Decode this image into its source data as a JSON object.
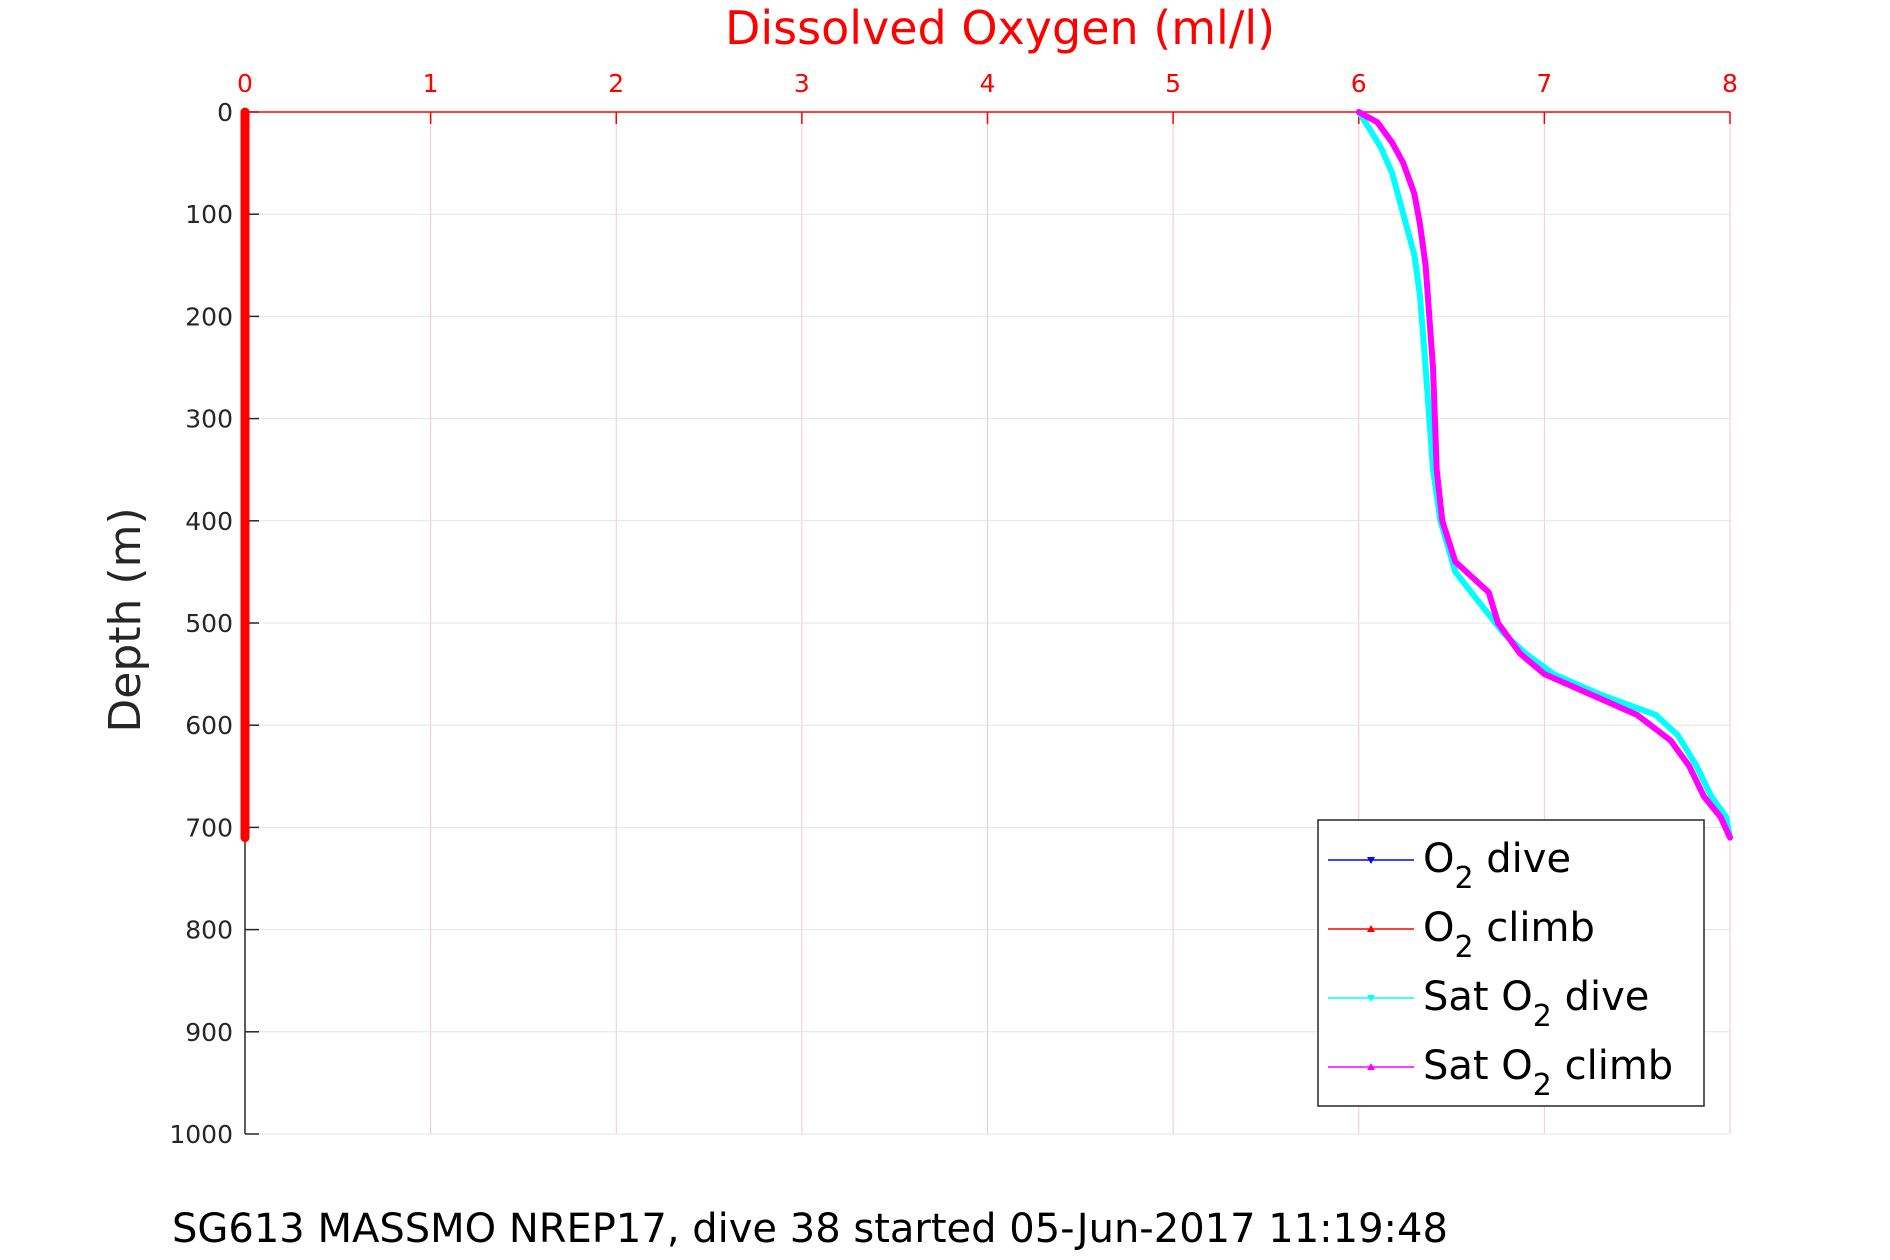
{
  "chart_data": {
    "type": "line",
    "title": "Dissolved Oxygen (ml/l)",
    "ylabel": "Depth (m)",
    "caption": "SG613 MASSMO NREP17, dive 38 started 05-Jun-2017 11:19:48",
    "xlim": [
      0,
      8
    ],
    "ylim": [
      0,
      1000
    ],
    "y_reversed": true,
    "x_axis_position": "top",
    "x_ticks": [
      0,
      1,
      2,
      3,
      4,
      5,
      6,
      7,
      8
    ],
    "y_ticks": [
      0,
      100,
      200,
      300,
      400,
      500,
      600,
      700,
      800,
      900,
      1000
    ],
    "grid": true,
    "legend_position": "bottom-right",
    "legend": [
      {
        "label_main": "O",
        "label_sub": "2",
        "label_rest": " dive",
        "color": "#0000ff"
      },
      {
        "label_main": "O",
        "label_sub": "2",
        "label_rest": " climb",
        "color": "#ff0000"
      },
      {
        "label_main": "Sat O",
        "label_sub": "2",
        "label_rest": " dive",
        "color": "#00ffff"
      },
      {
        "label_main": "Sat O",
        "label_sub": "2",
        "label_rest": " climb",
        "color": "#ff00ff"
      }
    ],
    "series": [
      {
        "color": "#0000ff",
        "points": [
          [
            0,
            0
          ],
          [
            0,
            700
          ]
        ]
      },
      {
        "color": "#ff0000",
        "points": [
          [
            0,
            0
          ],
          [
            0,
            710
          ]
        ]
      },
      {
        "color": "#00ffff",
        "points": [
          [
            6.0,
            0
          ],
          [
            6.07,
            20
          ],
          [
            6.12,
            35
          ],
          [
            6.18,
            60
          ],
          [
            6.24,
            100
          ],
          [
            6.3,
            140
          ],
          [
            6.33,
            180
          ],
          [
            6.36,
            250
          ],
          [
            6.38,
            300
          ],
          [
            6.4,
            350
          ],
          [
            6.44,
            400
          ],
          [
            6.52,
            450
          ],
          [
            6.65,
            480
          ],
          [
            6.78,
            510
          ],
          [
            6.9,
            530
          ],
          [
            7.05,
            550
          ],
          [
            7.3,
            570
          ],
          [
            7.6,
            590
          ],
          [
            7.72,
            610
          ],
          [
            7.82,
            640
          ],
          [
            7.9,
            670
          ],
          [
            7.98,
            690
          ],
          [
            8.0,
            710
          ]
        ]
      },
      {
        "color": "#ff00ff",
        "points": [
          [
            6.0,
            0
          ],
          [
            6.1,
            10
          ],
          [
            6.18,
            30
          ],
          [
            6.24,
            50
          ],
          [
            6.3,
            80
          ],
          [
            6.33,
            110
          ],
          [
            6.36,
            150
          ],
          [
            6.38,
            200
          ],
          [
            6.4,
            250
          ],
          [
            6.41,
            300
          ],
          [
            6.42,
            350
          ],
          [
            6.45,
            400
          ],
          [
            6.52,
            440
          ],
          [
            6.7,
            470
          ],
          [
            6.75,
            500
          ],
          [
            6.87,
            530
          ],
          [
            7.0,
            550
          ],
          [
            7.25,
            570
          ],
          [
            7.5,
            590
          ],
          [
            7.68,
            615
          ],
          [
            7.78,
            640
          ],
          [
            7.86,
            670
          ],
          [
            7.95,
            690
          ],
          [
            8.0,
            710
          ]
        ]
      }
    ]
  }
}
